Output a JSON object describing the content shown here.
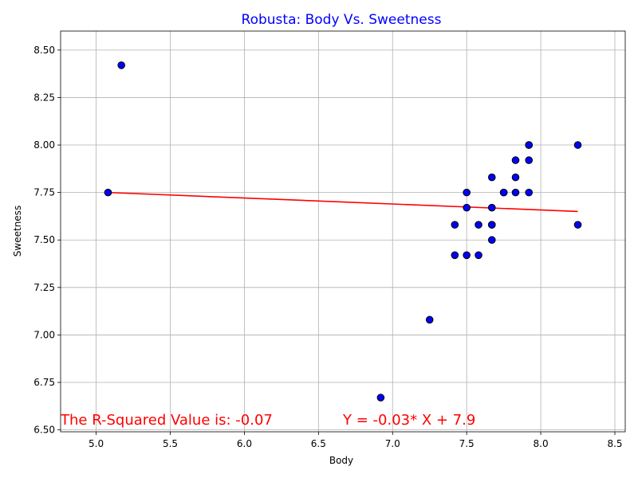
{
  "chart_data": {
    "type": "scatter",
    "title": "Robusta: Body Vs. Sweetness",
    "xlabel": "Body",
    "ylabel": "Sweetness",
    "xlim": [
      4.76,
      8.57
    ],
    "ylim": [
      6.49,
      8.6
    ],
    "xticks": [
      "5.0",
      "5.5",
      "6.0",
      "6.5",
      "7.0",
      "7.5",
      "8.0",
      "8.5"
    ],
    "yticks": [
      "6.50",
      "6.75",
      "7.00",
      "7.25",
      "7.50",
      "7.75",
      "8.00",
      "8.25",
      "8.50"
    ],
    "grid": true,
    "points": [
      {
        "x": 5.08,
        "y": 7.75
      },
      {
        "x": 5.17,
        "y": 8.42
      },
      {
        "x": 6.92,
        "y": 6.67
      },
      {
        "x": 7.25,
        "y": 7.08
      },
      {
        "x": 7.42,
        "y": 7.42
      },
      {
        "x": 7.42,
        "y": 7.58
      },
      {
        "x": 7.5,
        "y": 7.42
      },
      {
        "x": 7.5,
        "y": 7.67
      },
      {
        "x": 7.5,
        "y": 7.75
      },
      {
        "x": 7.58,
        "y": 7.42
      },
      {
        "x": 7.58,
        "y": 7.58
      },
      {
        "x": 7.67,
        "y": 7.5
      },
      {
        "x": 7.67,
        "y": 7.58
      },
      {
        "x": 7.67,
        "y": 7.58
      },
      {
        "x": 7.67,
        "y": 7.67
      },
      {
        "x": 7.67,
        "y": 7.83
      },
      {
        "x": 7.75,
        "y": 7.75
      },
      {
        "x": 7.75,
        "y": 7.75
      },
      {
        "x": 7.83,
        "y": 7.75
      },
      {
        "x": 7.83,
        "y": 7.83
      },
      {
        "x": 7.83,
        "y": 7.92
      },
      {
        "x": 7.92,
        "y": 7.75
      },
      {
        "x": 7.92,
        "y": 7.92
      },
      {
        "x": 7.92,
        "y": 8.0
      },
      {
        "x": 7.92,
        "y": 8.0
      },
      {
        "x": 8.25,
        "y": 7.58
      },
      {
        "x": 8.25,
        "y": 8.0
      }
    ],
    "regression": {
      "x": [
        5.08,
        8.25
      ],
      "y": [
        7.75,
        7.65
      ]
    },
    "annotations": {
      "r_squared": "The R-Squared Value is: -0.07",
      "equation": "Y = -0.03* X + 7.9"
    },
    "colors": {
      "title": "#0000ff",
      "point_fill": "#0000ff",
      "point_edge": "#000000",
      "line": "#ff0000",
      "annotation": "#ff0000"
    }
  }
}
